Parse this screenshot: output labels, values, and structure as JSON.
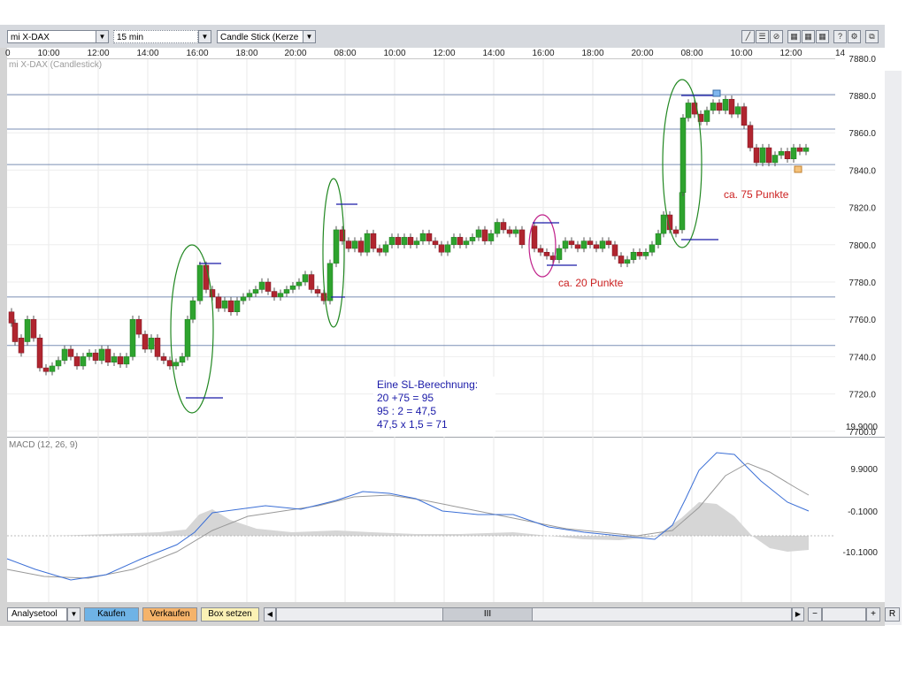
{
  "toolbar": {
    "instrument": "mi X-DAX",
    "interval": "15 min",
    "chart_type": "Candle Stick (Kerze"
  },
  "chart": {
    "main_label": "mi X-DAX (Candlestick)",
    "time_labels": [
      "0",
      "10:00",
      "12:00",
      "14:00",
      "16:00",
      "18:00",
      "20:00",
      "08:00",
      "10:00",
      "12:00",
      "14:00",
      "16:00",
      "18:00",
      "20:00",
      "08:00",
      "10:00",
      "12:00",
      "14"
    ],
    "price_ticks": [
      "7880.0",
      "7860.0",
      "7840.0",
      "7820.0",
      "7800.0",
      "7780.0",
      "7760.0",
      "7740.0",
      "7720.0",
      "7700.0"
    ],
    "price_tick_top_partial": "7880.0",
    "macd_label": "MACD (12, 26, 9)",
    "macd_ticks": [
      "19.9000",
      "9.9000",
      "-0.1000",
      "-10.1000"
    ],
    "annotation_20": "ca. 20 Punkte",
    "annotation_75": "ca. 75 Punkte",
    "sl_lines": [
      "Eine SL-Berechnung:",
      "20 +75 = 95",
      "95 : 2 = 47,5",
      "47,5 x 1,5 = 71"
    ]
  },
  "bottom": {
    "analysetool": "Analysetool",
    "kaufen": "Kaufen",
    "verkaufen": "Verkaufen",
    "box_setzen": "Box setzen",
    "scroll_thumb": "III",
    "plus": "+",
    "minus": "−",
    "r": "R"
  },
  "colors": {
    "up_candle": "#2ea32e",
    "down_candle": "#b0252f",
    "annotation_red": "#cc2222",
    "annotation_blue": "#1a1aa8",
    "macd_line": "#3b6fd6",
    "signal_line": "#999999",
    "hist": "#d6d6d6",
    "kaufen_bg": "#6fb3e6",
    "verkaufen_bg": "#f5b36a",
    "box_bg": "#fbf1b5"
  },
  "chart_data": {
    "type": "candlestick",
    "title": "mi X-DAX (Candlestick)",
    "horizontal_levels": [
      7880.5,
      7862,
      7843,
      7772,
      7746
    ]
  }
}
